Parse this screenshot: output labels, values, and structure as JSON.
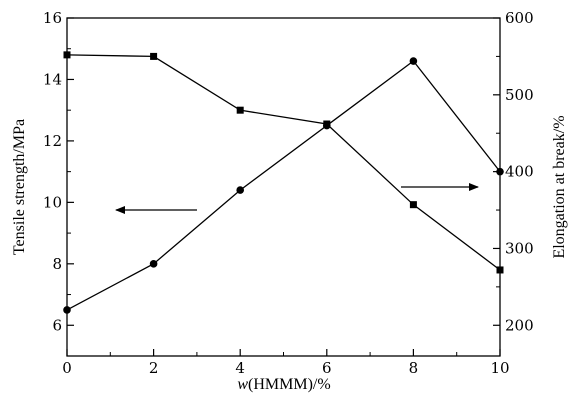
{
  "chart_data": {
    "type": "line",
    "xlabel": "w(HMMM)/%",
    "xlabel_prefix": "w",
    "xlabel_suffix": "(HMMM)/%",
    "ylabel_left": "Tensile strength/MPa",
    "ylabel_right": "Elongation at break/%",
    "x": [
      0,
      2,
      4,
      6,
      8,
      10
    ],
    "xlim": [
      0,
      10
    ],
    "xticks": [
      0,
      2,
      4,
      6,
      8,
      10
    ],
    "ylim_left": [
      5,
      16
    ],
    "yticks_left": [
      6,
      8,
      10,
      12,
      14,
      16
    ],
    "ylim_right": [
      160,
      600
    ],
    "yticks_right": [
      200,
      300,
      400,
      500,
      600
    ],
    "grid": false,
    "series": [
      {
        "axis": "left",
        "marker": "circle",
        "values": [
          6.5,
          8.0,
          10.4,
          12.5,
          14.6,
          11.0
        ]
      },
      {
        "axis": "right",
        "marker": "square",
        "values": [
          552,
          550,
          480,
          462,
          357,
          272
        ]
      }
    ],
    "annotations": [
      {
        "type": "arrow",
        "direction": "left",
        "points_to": "left-axis"
      },
      {
        "type": "arrow",
        "direction": "right",
        "points_to": "right-axis"
      }
    ]
  }
}
